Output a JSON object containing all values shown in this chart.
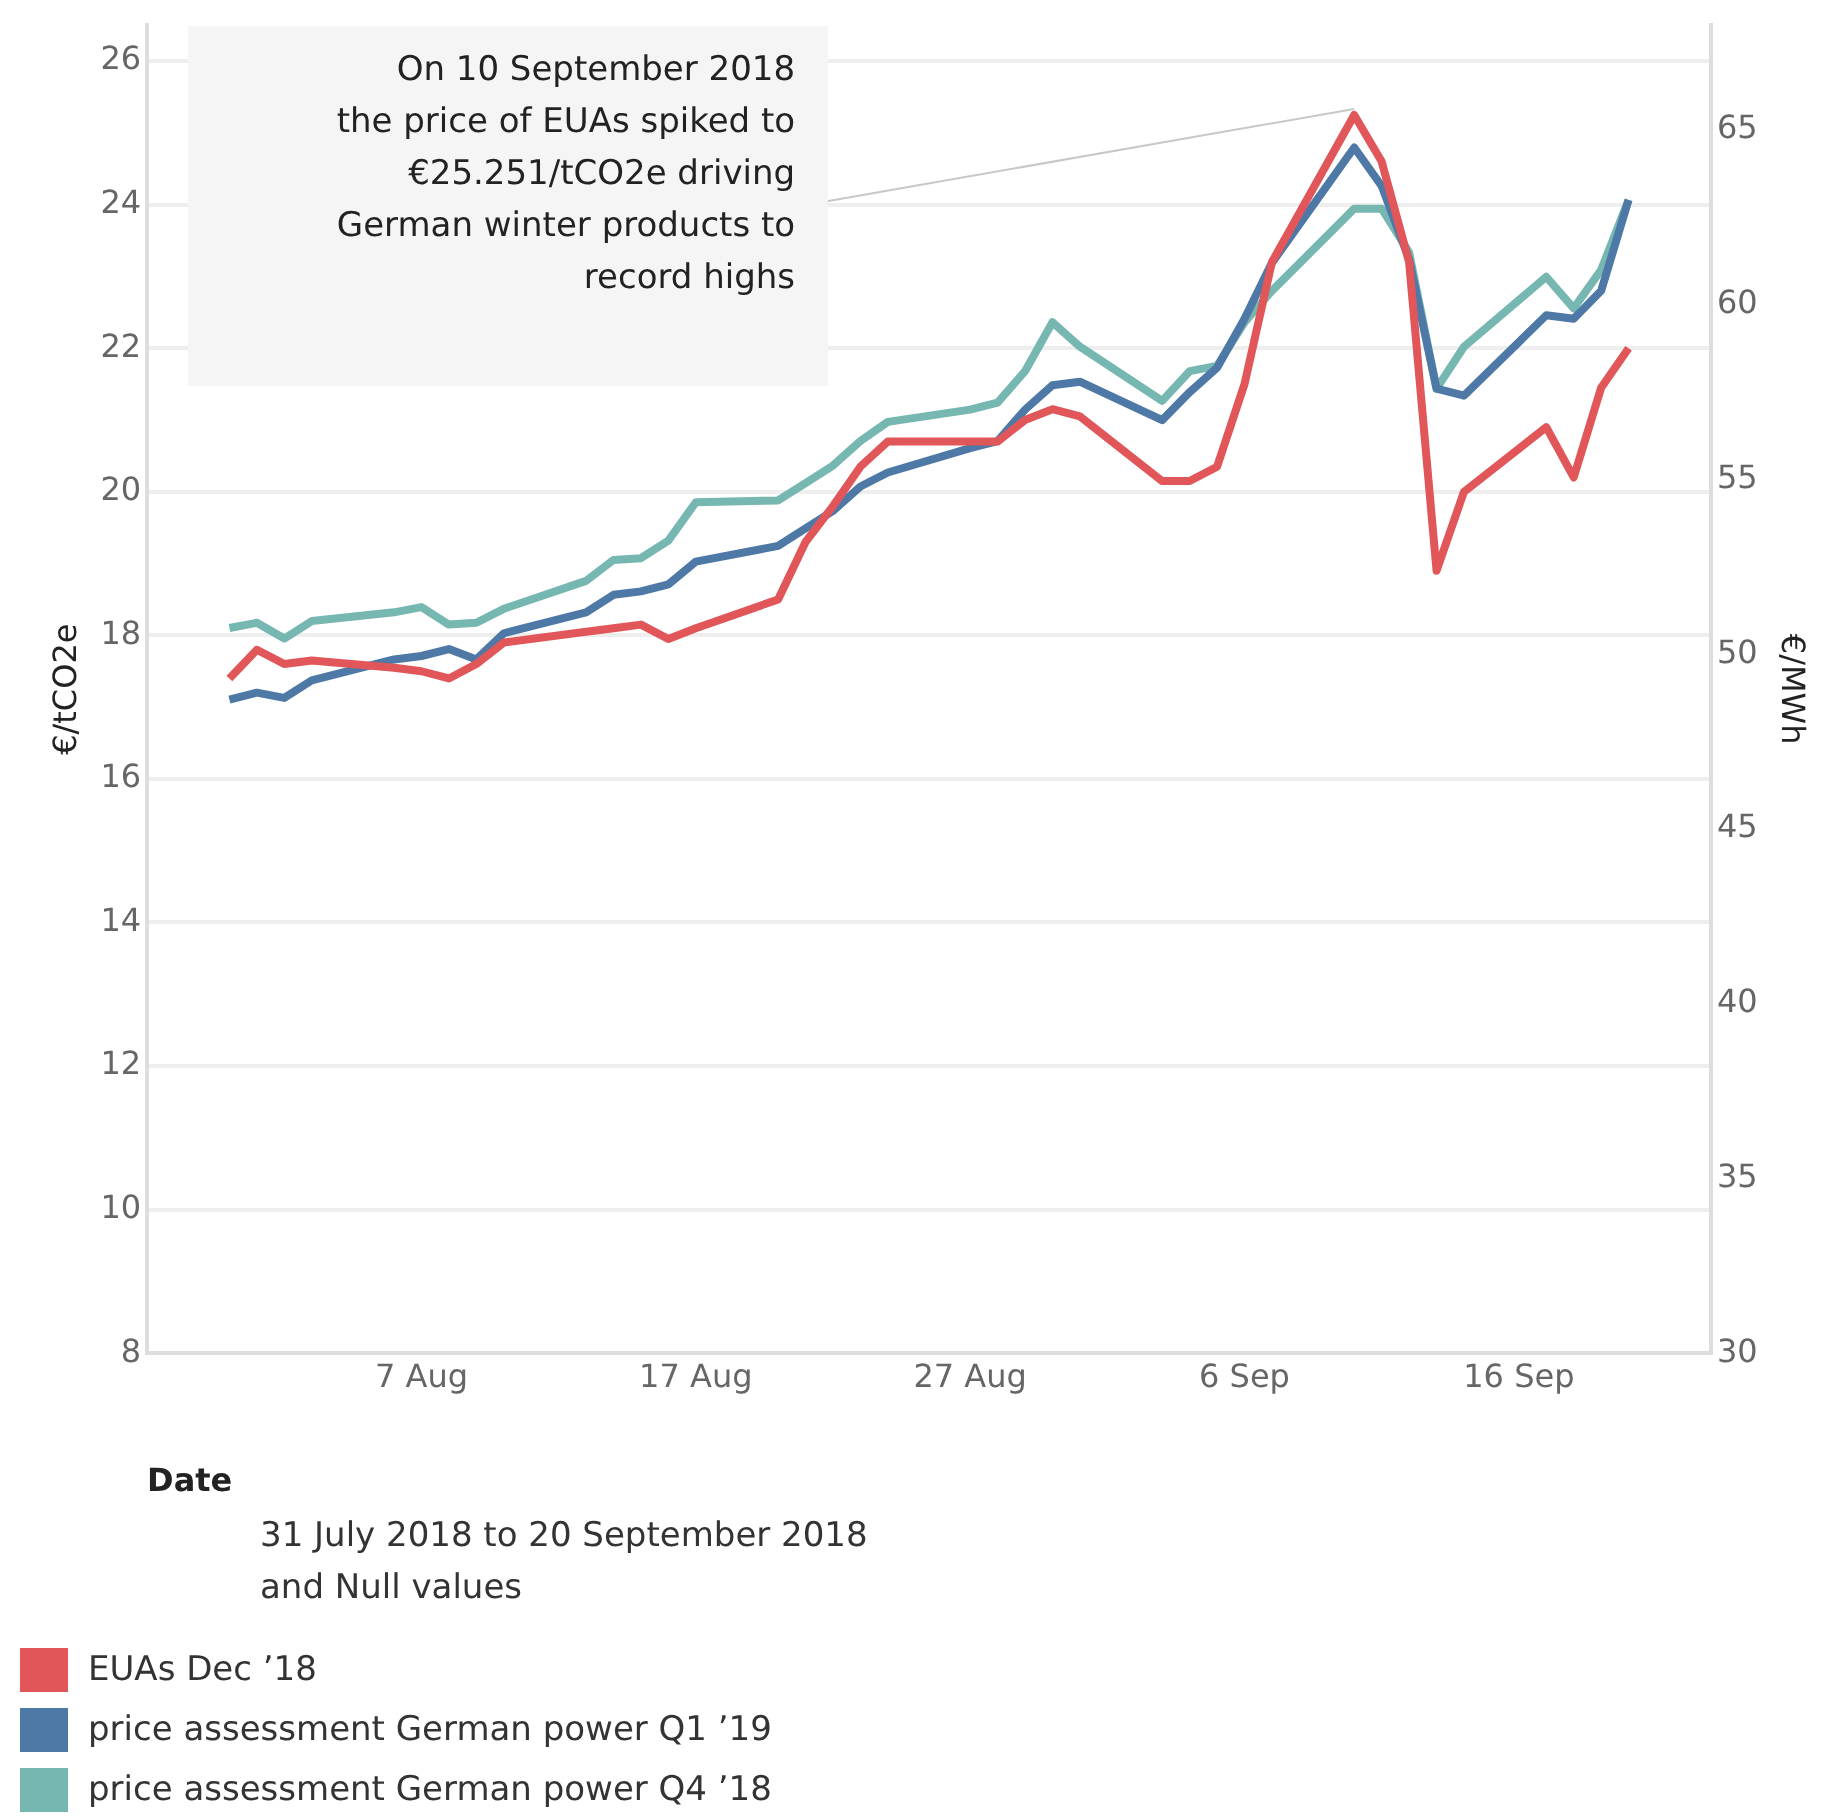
{
  "chart_data": {
    "type": "line",
    "xlabel": "Date",
    "ylabel": "€/tCO2e",
    "y2label": "€/MWh",
    "x": [
      "2018-07-31",
      "2018-08-01",
      "2018-08-02",
      "2018-08-03",
      "2018-08-06",
      "2018-08-07",
      "2018-08-08",
      "2018-08-09",
      "2018-08-10",
      "2018-08-13",
      "2018-08-14",
      "2018-08-15",
      "2018-08-16",
      "2018-08-17",
      "2018-08-20",
      "2018-08-21",
      "2018-08-22",
      "2018-08-23",
      "2018-08-24",
      "2018-08-27",
      "2018-08-28",
      "2018-08-29",
      "2018-08-30",
      "2018-08-31",
      "2018-09-03",
      "2018-09-04",
      "2018-09-05",
      "2018-09-06",
      "2018-09-07",
      "2018-09-10",
      "2018-09-11",
      "2018-09-12",
      "2018-09-13",
      "2018-09-14",
      "2018-09-17",
      "2018-09-18",
      "2018-09-19",
      "2018-09-20"
    ],
    "series": [
      {
        "name": "EUAs Dec ’18",
        "color": "#e15759",
        "values": [
          17.4,
          17.8,
          17.6,
          17.65,
          17.55,
          17.5,
          17.4,
          17.6,
          17.9,
          18.05,
          18.1,
          18.15,
          17.95,
          18.1,
          18.5,
          19.3,
          19.8,
          20.35,
          20.7,
          20.7,
          20.7,
          21.0,
          21.15,
          21.05,
          20.15,
          20.15,
          20.35,
          21.5,
          23.2,
          25.25,
          24.6,
          23.2,
          18.9,
          20.0,
          20.9,
          20.2,
          21.45,
          22.0
        ]
      },
      {
        "name": "price assessment German power Q1 ’19",
        "color": "#4e79a7",
        "axis": "y2",
        "values": [
          48.7,
          48.9,
          48.75,
          49.25,
          49.85,
          49.95,
          50.15,
          49.85,
          50.6,
          51.2,
          51.7,
          51.8,
          52.0,
          52.65,
          53.1,
          53.6,
          54.1,
          54.8,
          55.2,
          55.9,
          56.1,
          57.0,
          57.7,
          57.8,
          56.7,
          57.5,
          58.2,
          59.6,
          61.2,
          64.5,
          63.4,
          61.3,
          57.6,
          57.4,
          59.7,
          59.6,
          60.4,
          63.0
        ]
      },
      {
        "name": "price assessment German power Q4 ’18",
        "color": "#76b7b2",
        "axis": "y2",
        "values": [
          50.75,
          50.9,
          50.45,
          50.95,
          51.2,
          51.35,
          50.85,
          50.9,
          51.3,
          52.1,
          52.7,
          52.75,
          53.25,
          54.35,
          54.4,
          54.9,
          55.4,
          56.1,
          56.65,
          57.0,
          57.2,
          58.1,
          59.5,
          58.8,
          57.25,
          58.1,
          58.25,
          59.5,
          60.4,
          62.75,
          62.75,
          61.5,
          57.6,
          58.8,
          60.8,
          59.9,
          61.0,
          63.0
        ]
      }
    ],
    "xlim": [
      "2018-07-28",
      "2018-09-23"
    ],
    "xticks": [
      {
        "value": "2018-08-07",
        "label": "7 Aug"
      },
      {
        "value": "2018-08-17",
        "label": "17 Aug"
      },
      {
        "value": "2018-08-27",
        "label": "27 Aug"
      },
      {
        "value": "2018-09-06",
        "label": "6 Sep"
      },
      {
        "value": "2018-09-16",
        "label": "16 Sep"
      }
    ],
    "ylim": [
      8,
      26.5
    ],
    "yticks": [
      8,
      10,
      12,
      14,
      16,
      18,
      20,
      22,
      24,
      26
    ],
    "y2lim": [
      30,
      68
    ],
    "y2ticks": [
      30,
      35,
      40,
      45,
      50,
      55,
      60,
      65
    ],
    "grid": "y",
    "legend": "bottom",
    "annotations": [
      {
        "text": "On 10 September 2018\nthe price of EUAs spiked to\n€25.251/tCO2e driving\nGerman winter products to\nrecord highs",
        "x": "2018-09-10",
        "y": 25.25
      },
      "31 July 2018 to 20 September 2018\nand Null values"
    ]
  }
}
